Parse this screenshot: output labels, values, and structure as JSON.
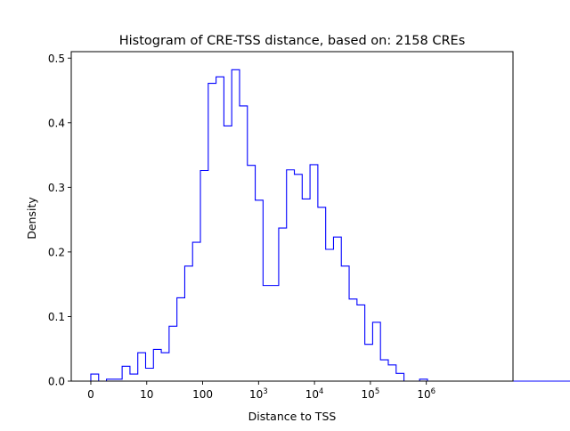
{
  "chart_data": {
    "type": "histogram",
    "title": "Histogram of CRE-TSS distance, based on: 2158 CREs",
    "xlabel": "Distance to TSS",
    "ylabel": "Density",
    "xlim": [
      -0.35,
      7.55
    ],
    "ylim": [
      0,
      0.51
    ],
    "x_scale": "symlog-style (log10(distance + 1))",
    "x_ticks": [
      {
        "value": 0,
        "base": "0",
        "exp": ""
      },
      {
        "value": 1,
        "base": "10",
        "exp": ""
      },
      {
        "value": 2,
        "base": "100",
        "exp": ""
      },
      {
        "value": 3,
        "base": "10",
        "exp": "3"
      },
      {
        "value": 4,
        "base": "10",
        "exp": "4"
      },
      {
        "value": 5,
        "base": "10",
        "exp": "5"
      },
      {
        "value": 6,
        "base": "10",
        "exp": "6"
      }
    ],
    "y_ticks": [
      {
        "value": 0.0,
        "label": "0.0"
      },
      {
        "value": 0.1,
        "label": "0.1"
      },
      {
        "value": 0.2,
        "label": "0.2"
      },
      {
        "value": 0.3,
        "label": "0.3"
      },
      {
        "value": 0.4,
        "label": "0.4"
      },
      {
        "value": 0.5,
        "label": "0.5"
      }
    ],
    "grid": false,
    "histtype": "step",
    "color": "#0000ff",
    "bin_width": 0.14,
    "bins_start": 0,
    "values": [
      0.011,
      0.0,
      0.003,
      0.003,
      0.023,
      0.011,
      0.044,
      0.02,
      0.049,
      0.044,
      0.085,
      0.129,
      0.178,
      0.215,
      0.326,
      0.461,
      0.471,
      0.395,
      0.482,
      0.426,
      0.334,
      0.28,
      0.148,
      0.148,
      0.237,
      0.327,
      0.32,
      0.282,
      0.335,
      0.269,
      0.204,
      0.223,
      0.178,
      0.127,
      0.118,
      0.057,
      0.091,
      0.033,
      0.025,
      0.012,
      0.0,
      0.0,
      0.003,
      0.0,
      0.0,
      0.0,
      0.0,
      0.0,
      0.0,
      0.0,
      0.0,
      0.0,
      0.0,
      0.0,
      0.0,
      0.0,
      0.0,
      0.0,
      0.0,
      0.0,
      0.0,
      0.0,
      0.002
    ]
  }
}
